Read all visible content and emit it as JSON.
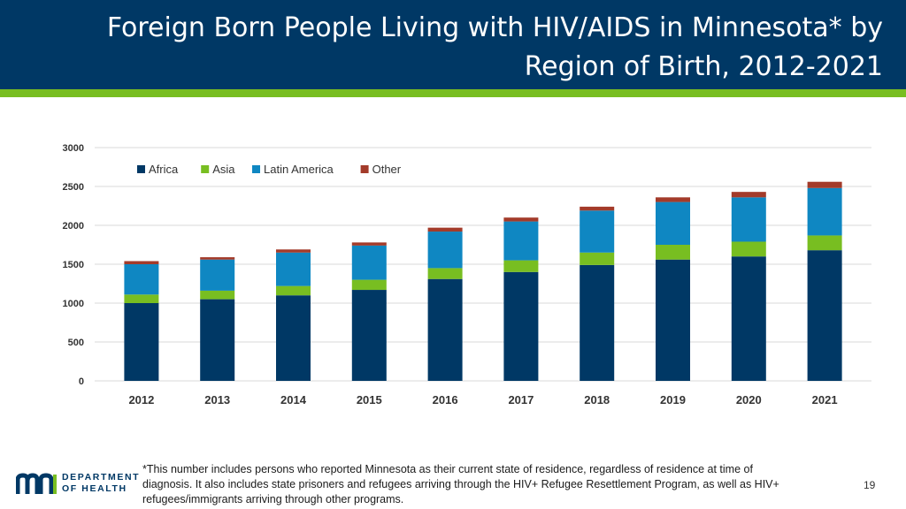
{
  "slide": {
    "title_line1": "Foreign Born People Living with HIV/AIDS in Minnesota* by",
    "title_line2": "Region of Birth, 2012-2021",
    "footnote_line1": "*This number includes persons who reported Minnesota as their current state of residence, regardless of residence at time of",
    "footnote_line2": "diagnosis. It also includes state prisoners and refugees arriving through the HIV+ Refugee Resettlement Program, as well as HIV+",
    "footnote_line3": "refugees/immigrants arriving through other programs.",
    "page_number": "19",
    "logo": {
      "line1": "DEPARTMENT",
      "line2": "OF HEALTH"
    }
  },
  "colors": {
    "header_bg": "#003865",
    "header_stripe": "#78be21",
    "africa": "#003865",
    "asia": "#78be21",
    "latin_america": "#0f87c2",
    "other": "#a33b2a",
    "grid": "#d9d9d9"
  },
  "chart_data": {
    "type": "bar",
    "stacked": true,
    "categories": [
      "2012",
      "2013",
      "2014",
      "2015",
      "2016",
      "2017",
      "2018",
      "2019",
      "2020",
      "2021"
    ],
    "series": [
      {
        "name": "Africa",
        "color": "#003865",
        "values": [
          1000,
          1050,
          1100,
          1170,
          1310,
          1400,
          1490,
          1560,
          1600,
          1680
        ]
      },
      {
        "name": "Asia",
        "color": "#78be21",
        "values": [
          110,
          110,
          120,
          130,
          140,
          150,
          160,
          190,
          190,
          190
        ]
      },
      {
        "name": "Latin America",
        "color": "#0f87c2",
        "values": [
          390,
          400,
          430,
          440,
          470,
          500,
          540,
          550,
          570,
          610
        ]
      },
      {
        "name": "Other",
        "color": "#a33b2a",
        "values": [
          40,
          30,
          40,
          40,
          50,
          50,
          50,
          60,
          70,
          80
        ]
      }
    ],
    "ylim": [
      0,
      3000
    ],
    "yticks": [
      0,
      500,
      1000,
      1500,
      2000,
      2500,
      3000
    ],
    "legend_position": "top-left",
    "grid": true
  }
}
